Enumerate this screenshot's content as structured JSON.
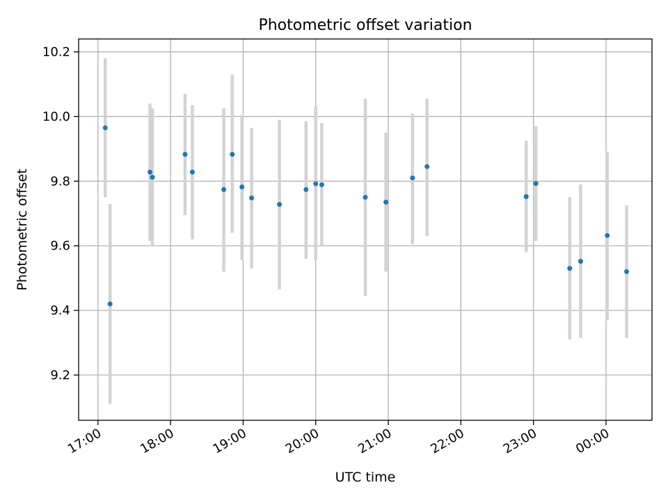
{
  "chart_data": {
    "type": "scatter",
    "title": "Photometric offset variation",
    "xlabel": "UTC time",
    "ylabel": "Photometric offset",
    "x_ticks": [
      "17:00",
      "18:00",
      "19:00",
      "20:00",
      "21:00",
      "22:00",
      "23:00",
      "00:00"
    ],
    "y_ticks": [
      "9.2",
      "9.4",
      "9.6",
      "9.8",
      "10.0",
      "10.2"
    ],
    "xlim": [
      "16:44",
      "00:38"
    ],
    "ylim": [
      9.06,
      10.24
    ],
    "grid": true,
    "x_ticks_rotated": true,
    "marker_color": "#1f77b4",
    "errorbar_color": "#d3d3d3",
    "points": [
      {
        "time": "17:06",
        "y": 9.965,
        "err_low": 9.75,
        "err_high": 10.18
      },
      {
        "time": "17:10",
        "y": 9.42,
        "err_low": 9.11,
        "err_high": 9.73
      },
      {
        "time": "17:43",
        "y": 9.828,
        "err_low": 9.615,
        "err_high": 10.04
      },
      {
        "time": "17:45",
        "y": 9.812,
        "err_low": 9.6,
        "err_high": 10.025
      },
      {
        "time": "18:12",
        "y": 9.883,
        "err_low": 9.695,
        "err_high": 10.07
      },
      {
        "time": "18:18",
        "y": 9.828,
        "err_low": 9.62,
        "err_high": 10.035
      },
      {
        "time": "18:44",
        "y": 9.774,
        "err_low": 9.52,
        "err_high": 10.025
      },
      {
        "time": "18:51",
        "y": 9.883,
        "err_low": 9.64,
        "err_high": 10.13
      },
      {
        "time": "18:59",
        "y": 9.782,
        "err_low": 9.555,
        "err_high": 10.005
      },
      {
        "time": "19:07",
        "y": 9.748,
        "err_low": 9.53,
        "err_high": 9.965
      },
      {
        "time": "19:30",
        "y": 9.728,
        "err_low": 9.465,
        "err_high": 9.99
      },
      {
        "time": "19:52",
        "y": 9.774,
        "err_low": 9.56,
        "err_high": 9.985
      },
      {
        "time": "20:00",
        "y": 9.792,
        "err_low": 9.555,
        "err_high": 10.03
      },
      {
        "time": "20:05",
        "y": 9.789,
        "err_low": 9.6,
        "err_high": 9.98
      },
      {
        "time": "20:41",
        "y": 9.75,
        "err_low": 9.445,
        "err_high": 10.055
      },
      {
        "time": "20:58",
        "y": 9.735,
        "err_low": 9.52,
        "err_high": 9.95
      },
      {
        "time": "21:20",
        "y": 9.81,
        "err_low": 9.605,
        "err_high": 10.01
      },
      {
        "time": "21:32",
        "y": 9.845,
        "err_low": 9.63,
        "err_high": 10.055
      },
      {
        "time": "22:54",
        "y": 9.752,
        "err_low": 9.58,
        "err_high": 9.925
      },
      {
        "time": "23:02",
        "y": 9.793,
        "err_low": 9.615,
        "err_high": 9.97
      },
      {
        "time": "23:30",
        "y": 9.53,
        "err_low": 9.31,
        "err_high": 9.75
      },
      {
        "time": "23:39",
        "y": 9.552,
        "err_low": 9.315,
        "err_high": 9.79
      },
      {
        "time": "00:01",
        "y": 9.632,
        "err_low": 9.37,
        "err_high": 9.89
      },
      {
        "time": "00:17",
        "y": 9.52,
        "err_low": 9.315,
        "err_high": 9.725
      }
    ]
  }
}
